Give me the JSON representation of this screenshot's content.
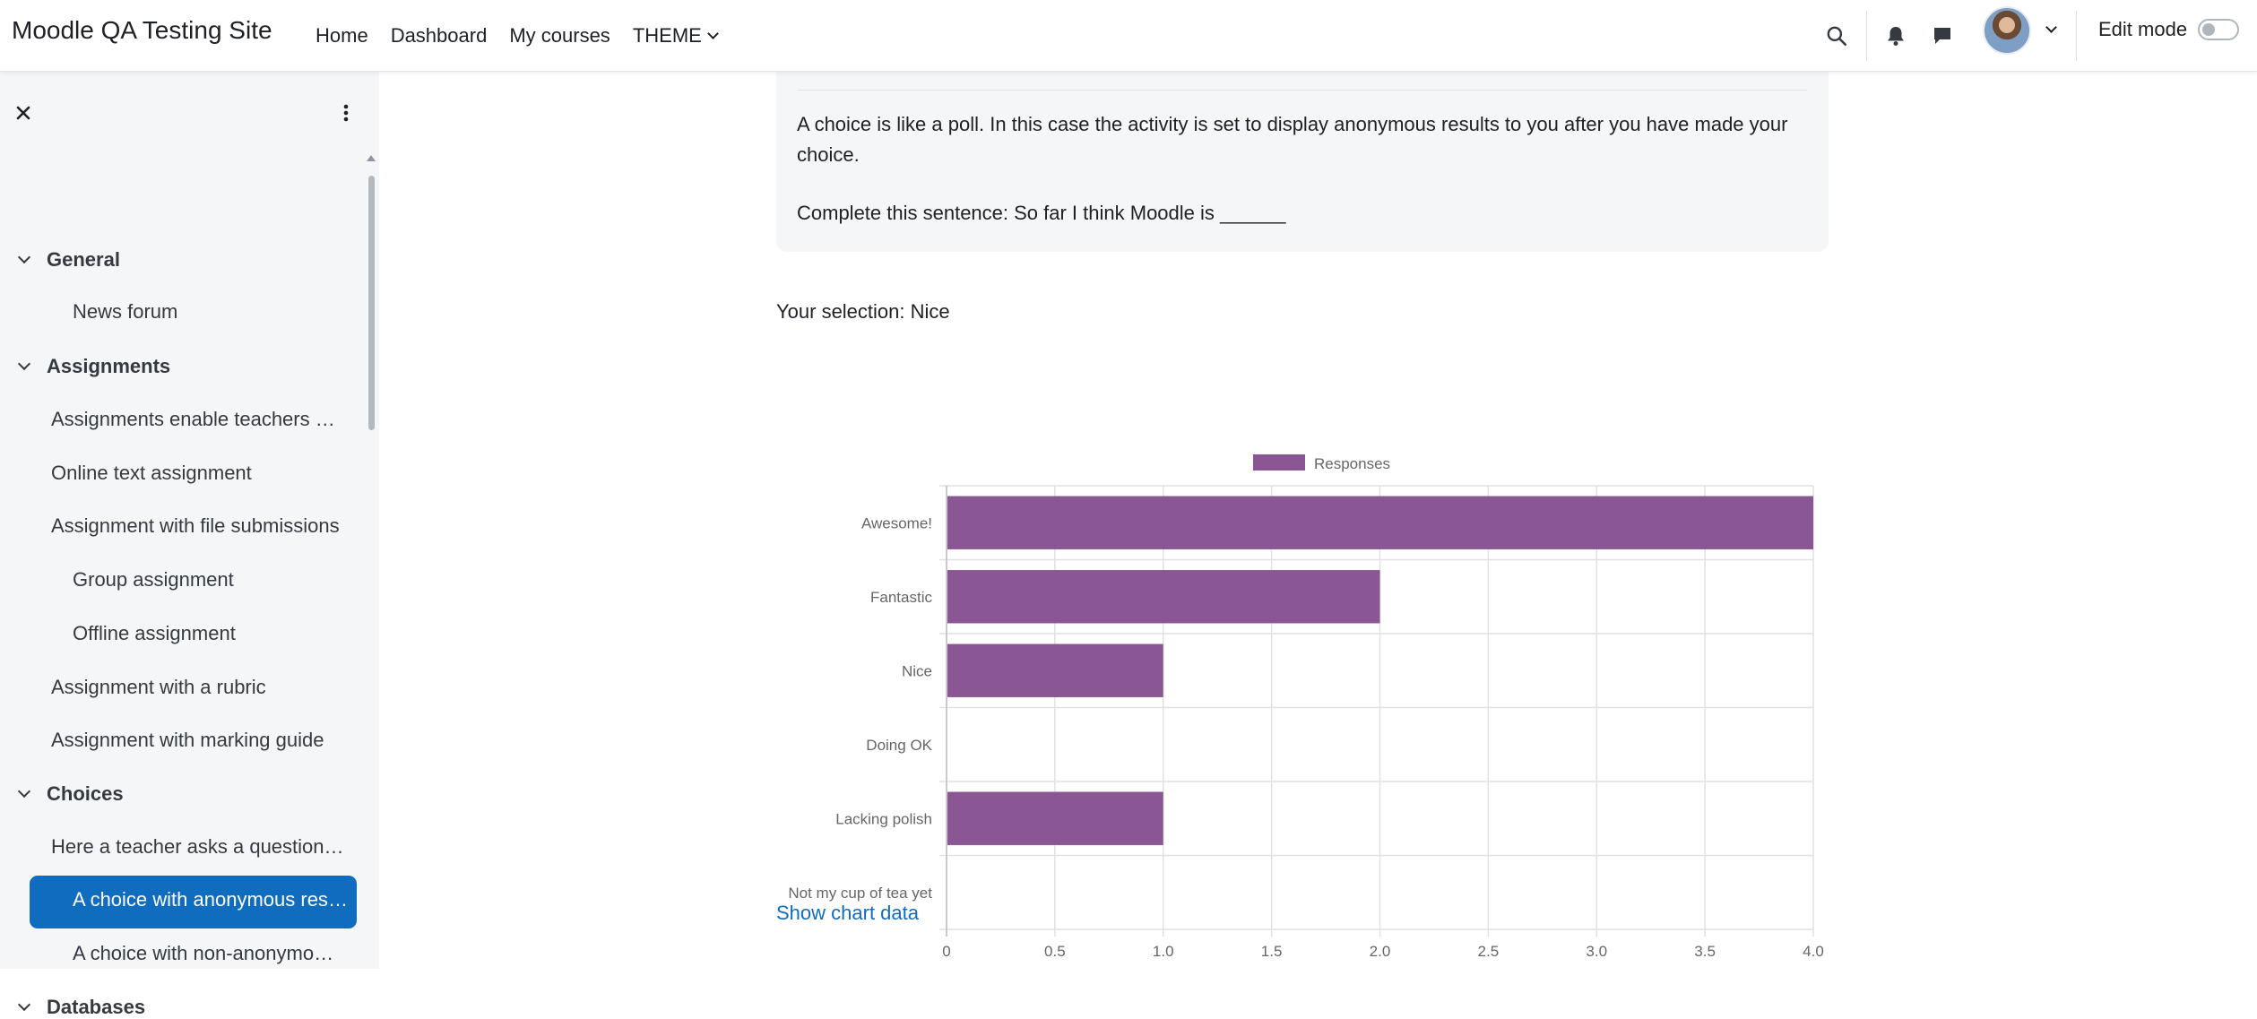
{
  "site": {
    "title": "Moodle QA Testing Site"
  },
  "nav": {
    "items": [
      "Home",
      "Dashboard",
      "My courses"
    ],
    "theme_label": "THEME",
    "edit_mode_label": "Edit mode"
  },
  "icons": {
    "search": "search-icon",
    "bell": "bell-icon",
    "messages": "chat-bubble-icon",
    "close": "close-icon",
    "more": "kebab-menu-icon"
  },
  "colors": {
    "accent": "#0f6cbf",
    "bar": "#8a5693",
    "drawer_bg": "#f5f6f8"
  },
  "course_index": {
    "sections": [
      {
        "title": "General",
        "items": [
          "News forum"
        ]
      },
      {
        "title": "Assignments",
        "items": [
          "Assignments enable teachers to grade and give feedback",
          "Online text assignment",
          "Assignment with file submissions",
          "Group assignment",
          "Offline assignment",
          "Assignment with a rubric",
          "Assignment with marking guide"
        ]
      },
      {
        "title": "Choices",
        "items": [
          "Here a teacher asks a question and specifies a choice of multiple responses",
          "A choice with anonymous results",
          "A choice with non-anonymous results"
        ]
      },
      {
        "title": "Databases",
        "items": []
      }
    ]
  },
  "content": {
    "intro": "A choice is like a poll. In this case the activity is set to display anonymous results to you after you have made your choice.",
    "question": "Complete this sentence: So far I think Moodle is ______",
    "selection": "Your selection: Nice",
    "show_chart_data": "Show chart data"
  },
  "chart_data": {
    "type": "bar",
    "orientation": "horizontal",
    "categories": [
      "Awesome!",
      "Fantastic",
      "Nice",
      "Doing OK",
      "Lacking polish",
      "Not my cup of tea yet"
    ],
    "series": [
      {
        "name": "Responses",
        "values": [
          4,
          2,
          1,
          0,
          1,
          0
        ]
      }
    ],
    "xlim": [
      0,
      4
    ],
    "xticks": [
      0,
      0.5,
      1.0,
      1.5,
      2.0,
      2.5,
      3.0,
      3.5,
      4.0
    ],
    "xtick_labels": [
      "0",
      "0.5",
      "1.0",
      "1.5",
      "2.0",
      "2.5",
      "3.0",
      "3.5",
      "4.0"
    ],
    "legend": "top",
    "grid": true
  }
}
